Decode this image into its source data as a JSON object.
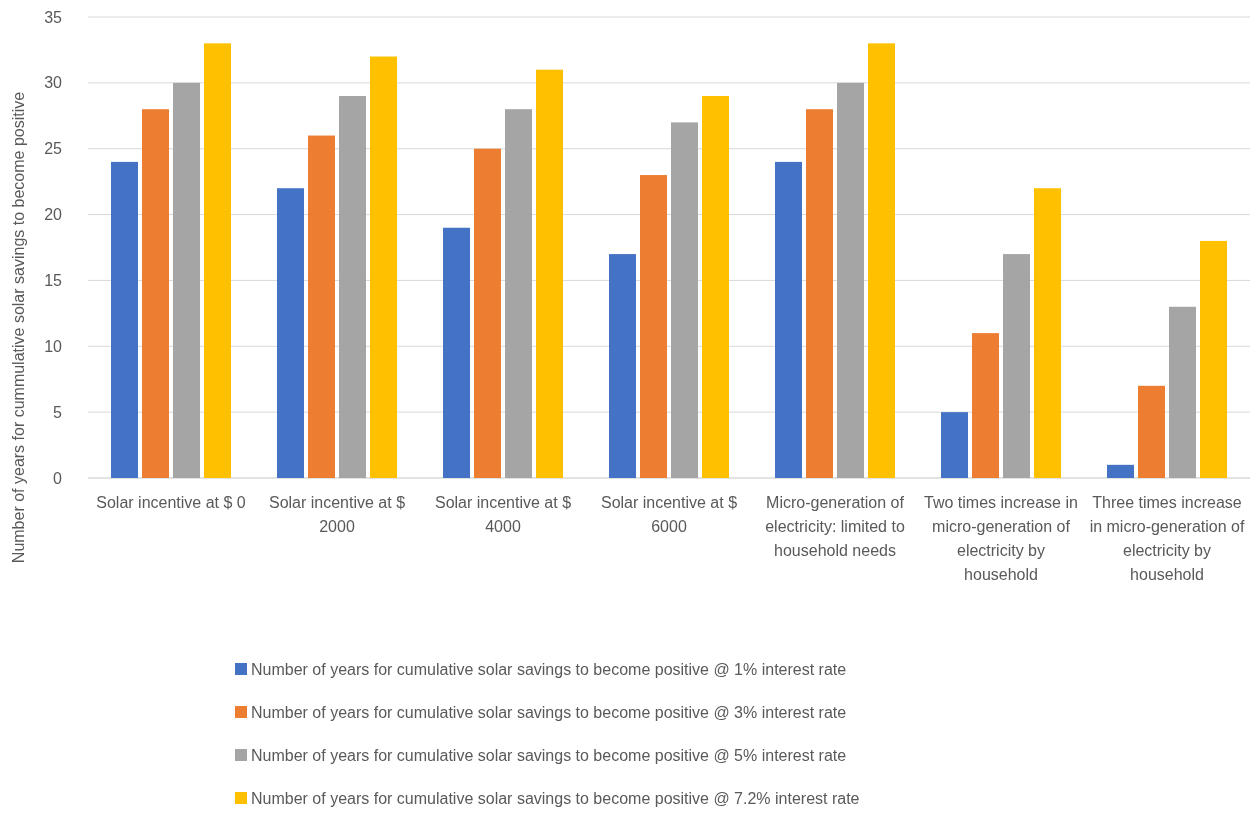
{
  "chart_data": {
    "type": "bar",
    "ylabel": "Number of years for cummulative solar savings to become positive",
    "categories": [
      "Solar incentive at $ 0",
      "Solar incentive at $ 2000",
      "Solar incentive at $ 4000",
      "Solar incentive at $ 6000",
      "Micro-generation of electricity: limited to household needs",
      "Two times increase in micro-generation of electricity by household",
      "Three times increase in micro-generation of electricity by household"
    ],
    "series": [
      {
        "name": "Number of years for cumulative solar savings to become positive @ 1% interest rate",
        "color": "#4472c4",
        "values": [
          24,
          22,
          19,
          17,
          24,
          5,
          1
        ]
      },
      {
        "name": "Number of years for cumulative solar savings to become positive @ 3% interest rate",
        "color": "#ed7d31",
        "values": [
          28,
          26,
          25,
          23,
          28,
          11,
          7
        ]
      },
      {
        "name": "Number of years for cumulative solar savings to become positive @ 5% interest rate",
        "color": "#a5a5a5",
        "values": [
          30,
          29,
          28,
          27,
          30,
          17,
          13
        ]
      },
      {
        "name": "Number of years for cumulative solar savings to become positive @ 7.2% interest rate",
        "color": "#ffc000",
        "values": [
          33,
          32,
          31,
          29,
          33,
          22,
          18
        ]
      }
    ],
    "ylim": [
      0,
      35
    ],
    "yticks": [
      0,
      5,
      10,
      15,
      20,
      25,
      30,
      35
    ],
    "grid": "y",
    "legend": "bottom"
  }
}
